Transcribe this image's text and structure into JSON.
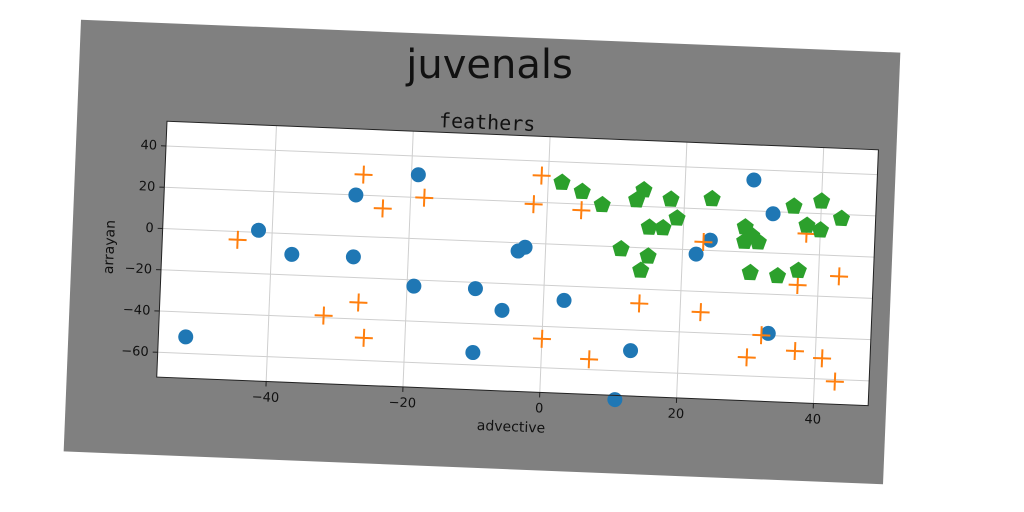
{
  "chart_data": {
    "type": "scatter",
    "title": "juvenals",
    "subtitle": "feathers",
    "xlabel": "advective",
    "ylabel": "arrayan",
    "xlim": [
      -56,
      48
    ],
    "ylim": [
      -72,
      52
    ],
    "xticks": [
      -40,
      -20,
      0,
      20,
      40
    ],
    "yticks": [
      -60,
      -40,
      -20,
      0,
      20,
      40
    ],
    "xtick_labels": [
      "−40",
      "−20",
      "0",
      "20",
      "40"
    ],
    "ytick_labels": [
      "−60",
      "−40",
      "−20",
      "0",
      "20",
      "40"
    ],
    "grid": true,
    "series": [
      {
        "color": "#1f77b4",
        "marker": "circle",
        "points": [
          [
            -52,
            -52
          ],
          [
            -42,
            1
          ],
          [
            -37,
            -10
          ],
          [
            -28,
            20
          ],
          [
            -28,
            -10
          ],
          [
            -19,
            31
          ],
          [
            -19,
            -23
          ],
          [
            -10,
            -23
          ],
          [
            -10,
            -54
          ],
          [
            -6,
            -33
          ],
          [
            -4,
            -4
          ],
          [
            -3,
            -2
          ],
          [
            3,
            -27
          ],
          [
            11,
            -74
          ],
          [
            13,
            -50
          ],
          [
            22,
            -2
          ],
          [
            24,
            5
          ],
          [
            30,
            35
          ],
          [
            33,
            19
          ],
          [
            33,
            -39
          ]
        ]
      },
      {
        "color": "#ff7f0e",
        "marker": "plus",
        "points": [
          [
            -45,
            -4
          ],
          [
            -32,
            -39
          ],
          [
            -27,
            30
          ],
          [
            -27,
            -32
          ],
          [
            -26,
            -49
          ],
          [
            -24,
            14
          ],
          [
            -18,
            20
          ],
          [
            -2,
            19
          ],
          [
            -1,
            33
          ],
          [
            0,
            -46
          ],
          [
            5,
            17
          ],
          [
            7,
            -55
          ],
          [
            14,
            -27
          ],
          [
            23,
            4
          ],
          [
            23,
            -30
          ],
          [
            30,
            -51
          ],
          [
            32,
            -40
          ],
          [
            37,
            -15
          ],
          [
            37,
            -47
          ],
          [
            38,
            10
          ],
          [
            41,
            -50
          ],
          [
            43,
            -10
          ],
          [
            43,
            -61
          ]
        ]
      },
      {
        "color": "#2ca02c",
        "marker": "pentagon",
        "points": [
          [
            2,
            30
          ],
          [
            5,
            26
          ],
          [
            8,
            20
          ],
          [
            11,
            -1
          ],
          [
            13,
            23
          ],
          [
            14,
            28
          ],
          [
            14,
            -11
          ],
          [
            15,
            10
          ],
          [
            15,
            -4
          ],
          [
            17,
            10
          ],
          [
            18,
            24
          ],
          [
            19,
            15
          ],
          [
            24,
            25
          ],
          [
            29,
            5
          ],
          [
            29,
            12
          ],
          [
            30,
            8
          ],
          [
            30,
            -10
          ],
          [
            31,
            5
          ],
          [
            34,
            -11
          ],
          [
            36,
            23
          ],
          [
            37,
            -8
          ],
          [
            38,
            14
          ],
          [
            40,
            12
          ],
          [
            40,
            26
          ],
          [
            43,
            18
          ]
        ]
      }
    ]
  }
}
